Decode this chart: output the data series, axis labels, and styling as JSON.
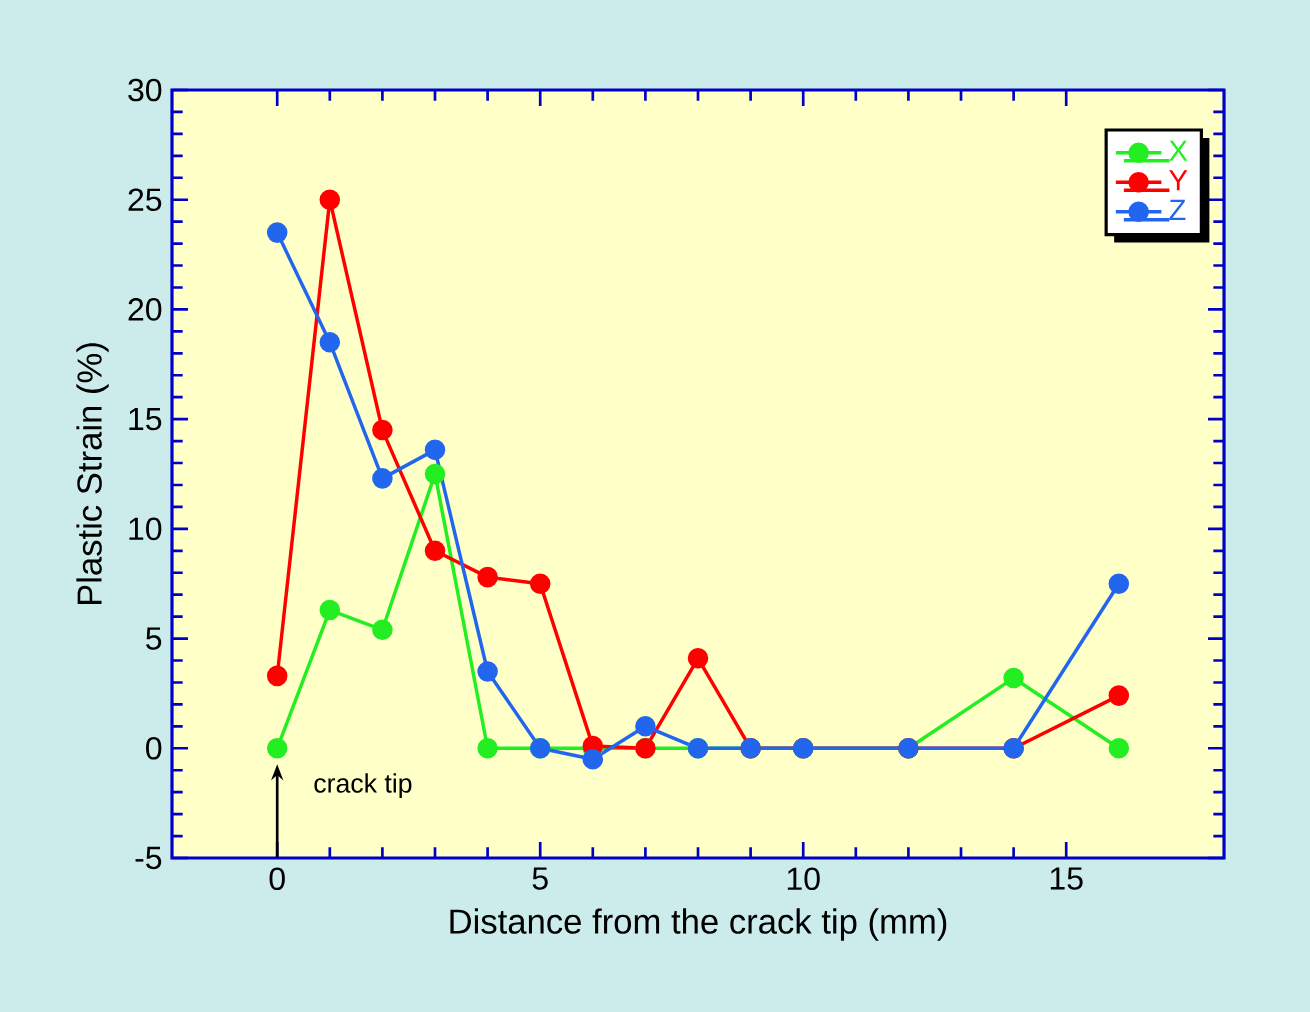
{
  "chart_data": {
    "type": "line",
    "xlabel": "Distance from the crack tip (mm)",
    "ylabel": "Plastic Strain (%)",
    "x": [
      0,
      1,
      2,
      3,
      4,
      5,
      6,
      7,
      8,
      9,
      10,
      12,
      14,
      16
    ],
    "series": [
      {
        "name": "X",
        "color": "#22ee22",
        "values": [
          0,
          6.3,
          5.4,
          12.5,
          0,
          0,
          0,
          0,
          0,
          0,
          0,
          0,
          3.2,
          0
        ]
      },
      {
        "name": "Y",
        "color": "#ff0000",
        "values": [
          3.3,
          25,
          14.5,
          9,
          7.8,
          7.5,
          0.1,
          0,
          4.1,
          0,
          0,
          0,
          0,
          2.4
        ]
      },
      {
        "name": "Z",
        "color": "#2266ee",
        "values": [
          23.5,
          18.5,
          12.3,
          13.6,
          3.5,
          0,
          -0.5,
          1.0,
          0,
          0,
          0,
          0,
          0,
          7.5
        ]
      }
    ],
    "xlim": [
      -2,
      18
    ],
    "ylim": [
      -5,
      30
    ],
    "xticks": [
      0,
      5,
      10,
      15
    ],
    "yticks": [
      -5,
      0,
      5,
      10,
      15,
      20,
      25,
      30
    ],
    "marker": "circle",
    "legend": "top right",
    "grid": false,
    "annotations": [
      {
        "text": "crack tip",
        "x": 0,
        "y": 0
      }
    ]
  }
}
